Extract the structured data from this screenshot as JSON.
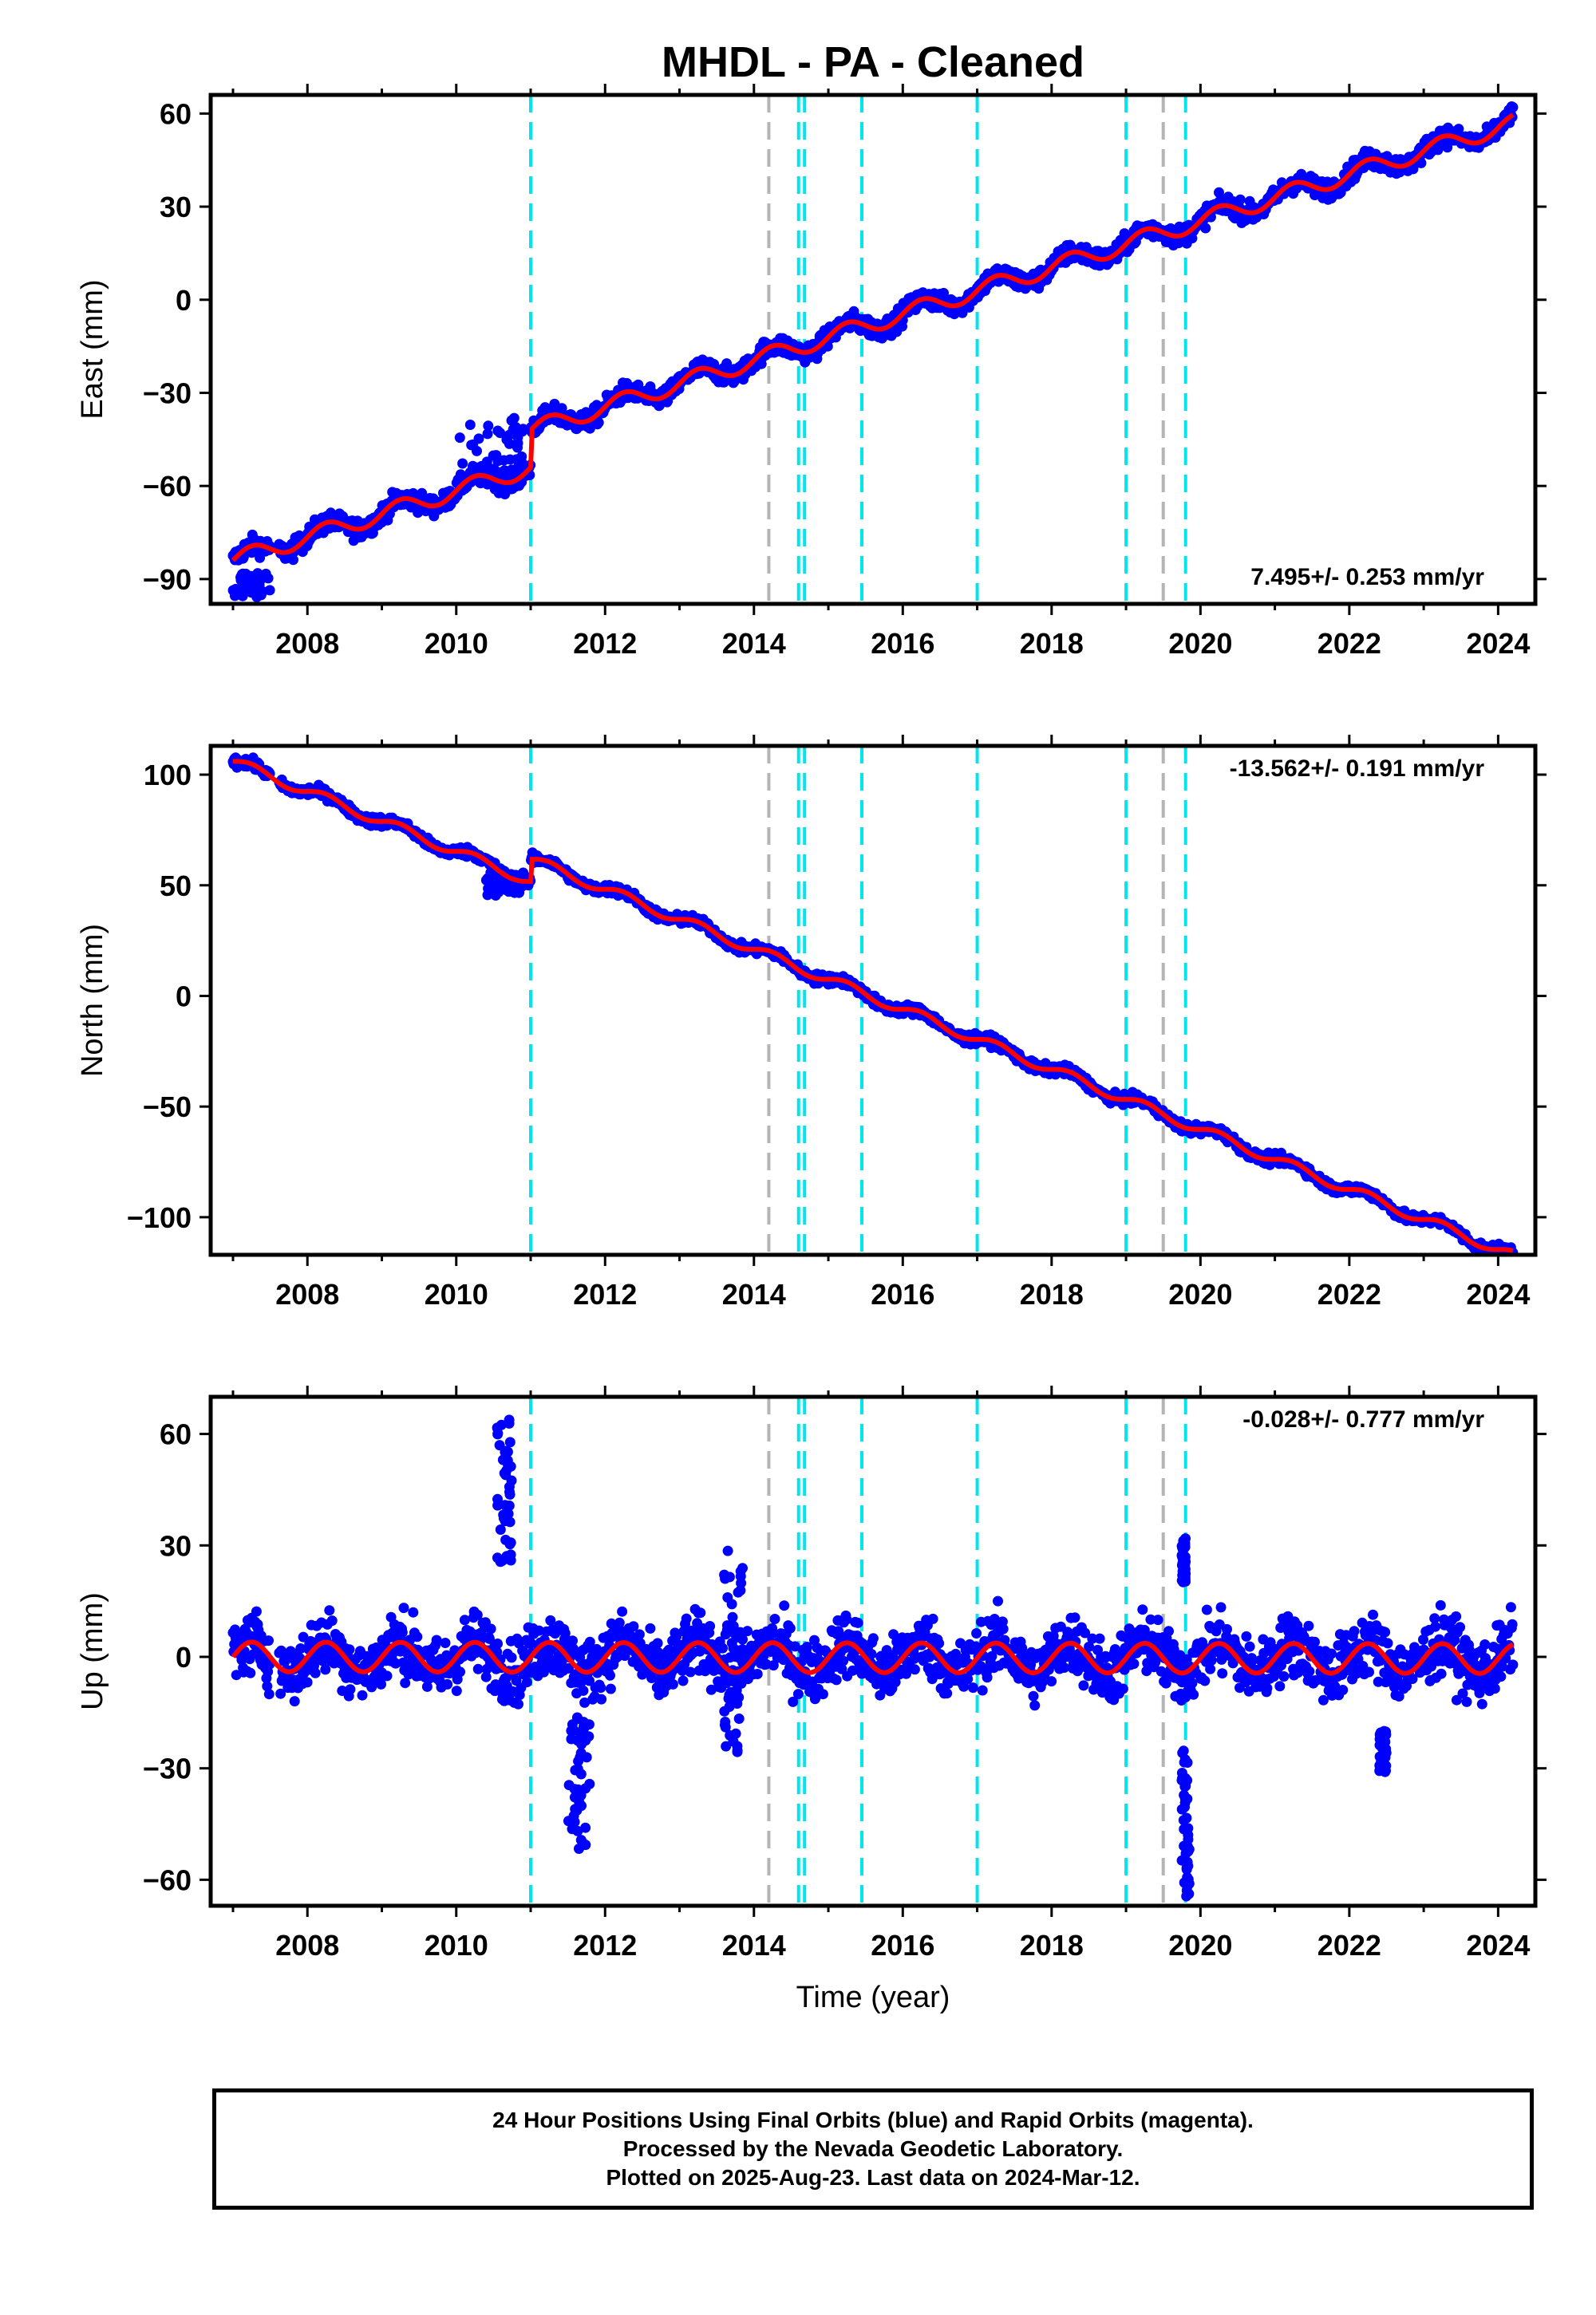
{
  "title": "MHDL  - PA - Cleaned",
  "xlabel": "Time (year)",
  "footer": {
    "line1": "24 Hour Positions Using Final Orbits (blue) and Rapid Orbits (magenta).",
    "line2": "Processed by the Nevada Geodetic Laboratory.",
    "line3": "Plotted on 2025-Aug-23. Last data on 2024-Mar-12."
  },
  "colors": {
    "data_points": "#0000ff",
    "model_fit": "#ff0000",
    "equipment_change_lines": "#00e5ee",
    "other_event_lines": "#b4b4b4"
  },
  "chart_data": [
    {
      "type": "scatter",
      "component": "East",
      "ylabel": "East (mm)",
      "rate": "7.495+/- 0.253 mm/yr",
      "rate_placement": "bottom-right",
      "xlim": [
        2006.7,
        2024.5
      ],
      "ylim": [
        -98,
        66
      ],
      "xticks": [
        2008,
        2010,
        2012,
        2014,
        2016,
        2018,
        2020,
        2022,
        2024
      ],
      "yticks": [
        -90,
        -60,
        -30,
        0,
        30,
        60
      ],
      "ytick_labels": [
        "−90",
        "−60",
        "−30",
        "0",
        "30",
        "60"
      ],
      "trend": {
        "start_year": 2007.0,
        "start_value": -84,
        "rate": 7.495,
        "seasonal_amplitude": 2.8,
        "scatter": 2.2
      },
      "offsets": [
        {
          "year": 2011.0,
          "step": 12
        }
      ],
      "outlier_groups": [
        {
          "year_from": 2007.0,
          "year_to": 2007.5,
          "value_from": -96,
          "value_to": -88
        },
        {
          "year_from": 2010.0,
          "year_to": 2010.9,
          "value_from": -58,
          "value_to": -38
        }
      ],
      "grid": false
    },
    {
      "type": "scatter",
      "component": "North",
      "ylabel": "North (mm)",
      "rate": "-13.562+/- 0.191 mm/yr",
      "rate_placement": "top-right",
      "xlim": [
        2006.7,
        2024.5
      ],
      "ylim": [
        -117,
        113
      ],
      "xticks": [
        2008,
        2010,
        2012,
        2014,
        2016,
        2018,
        2020,
        2022,
        2024
      ],
      "yticks": [
        -100,
        -50,
        0,
        50,
        100
      ],
      "ytick_labels": [
        "−100",
        "−50",
        "0",
        "50",
        "100"
      ],
      "trend": {
        "start_year": 2007.0,
        "start_value": 106,
        "rate": -13.562,
        "seasonal_amplitude": 2.2,
        "scatter": 1.6
      },
      "offsets": [
        {
          "year": 2011.0,
          "step": 10
        }
      ],
      "outlier_groups": [
        {
          "year_from": 2010.4,
          "year_to": 2010.9,
          "value_from": 45,
          "value_to": 56
        }
      ],
      "grid": false
    },
    {
      "type": "scatter",
      "component": "Up",
      "ylabel": "Up (mm)",
      "rate": "-0.028+/- 0.777 mm/yr",
      "rate_placement": "top-right",
      "xlim": [
        2006.7,
        2024.5
      ],
      "ylim": [
        -67,
        70
      ],
      "xticks": [
        2008,
        2010,
        2012,
        2014,
        2016,
        2018,
        2020,
        2022,
        2024
      ],
      "yticks": [
        -60,
        -30,
        0,
        30,
        60
      ],
      "ytick_labels": [
        "−60",
        "−30",
        "0",
        "30",
        "60"
      ],
      "trend": {
        "start_year": 2007.0,
        "start_value": 0,
        "rate": -0.028,
        "seasonal_amplitude": 4,
        "scatter": 6
      },
      "offsets": [],
      "outlier_groups": [
        {
          "year_from": 2010.55,
          "year_to": 2010.75,
          "value_from": 25,
          "value_to": 66
        },
        {
          "year_from": 2011.5,
          "year_to": 2011.8,
          "value_from": -52,
          "value_to": -15
        },
        {
          "year_from": 2013.6,
          "year_to": 2013.85,
          "value_from": -26,
          "value_to": 30
        },
        {
          "year_from": 2019.75,
          "year_to": 2019.85,
          "value_from": -65,
          "value_to": -25
        },
        {
          "year_from": 2019.75,
          "year_to": 2019.8,
          "value_from": 20,
          "value_to": 32
        },
        {
          "year_from": 2022.4,
          "year_to": 2022.5,
          "value_from": -31,
          "value_to": -20
        }
      ],
      "grid": false
    }
  ],
  "events": {
    "equipment_change_years": [
      2011.0,
      2014.6,
      2014.68,
      2015.45,
      2017.0,
      2019.0,
      2019.8
    ],
    "other_event_years": [
      2014.2,
      2019.5
    ]
  }
}
